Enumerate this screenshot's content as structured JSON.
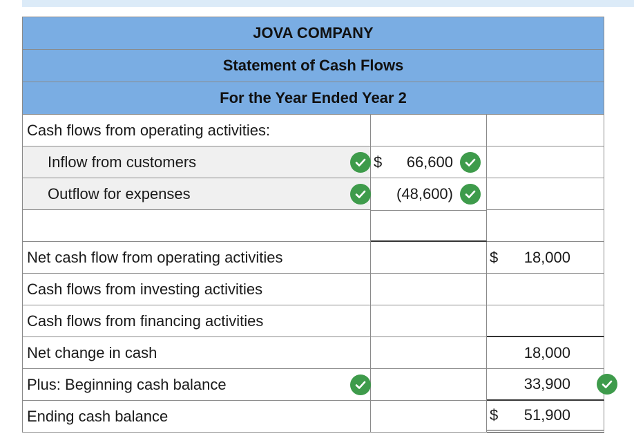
{
  "header": {
    "company": "JOVA COMPANY",
    "statement": "Statement of Cash Flows",
    "period": "For the Year Ended Year 2"
  },
  "rows": {
    "operating_heading": "Cash flows from operating activities:",
    "inflow_label": "Inflow from customers",
    "inflow_dollar": "$",
    "inflow_amount": "66,600",
    "outflow_label": "Outflow for expenses",
    "outflow_amount": "(48,600)",
    "net_operating_label": "Net cash flow from operating activities",
    "net_operating_dollar": "$",
    "net_operating_amount": "18,000",
    "investing_label": "Cash flows from investing activities",
    "financing_label": "Cash flows from financing activities",
    "net_change_label": "Net change in cash",
    "net_change_amount": "18,000",
    "beginning_label": "Plus: Beginning cash balance",
    "beginning_amount": "33,900",
    "ending_label": "Ending cash balance",
    "ending_dollar": "$",
    "ending_amount": "51,900"
  },
  "colors": {
    "header_bg": "#7aade3",
    "check_green": "#3e9b4b",
    "label_bg": "#f0f0f0"
  },
  "icons": {
    "correct": "checkmark-icon"
  }
}
